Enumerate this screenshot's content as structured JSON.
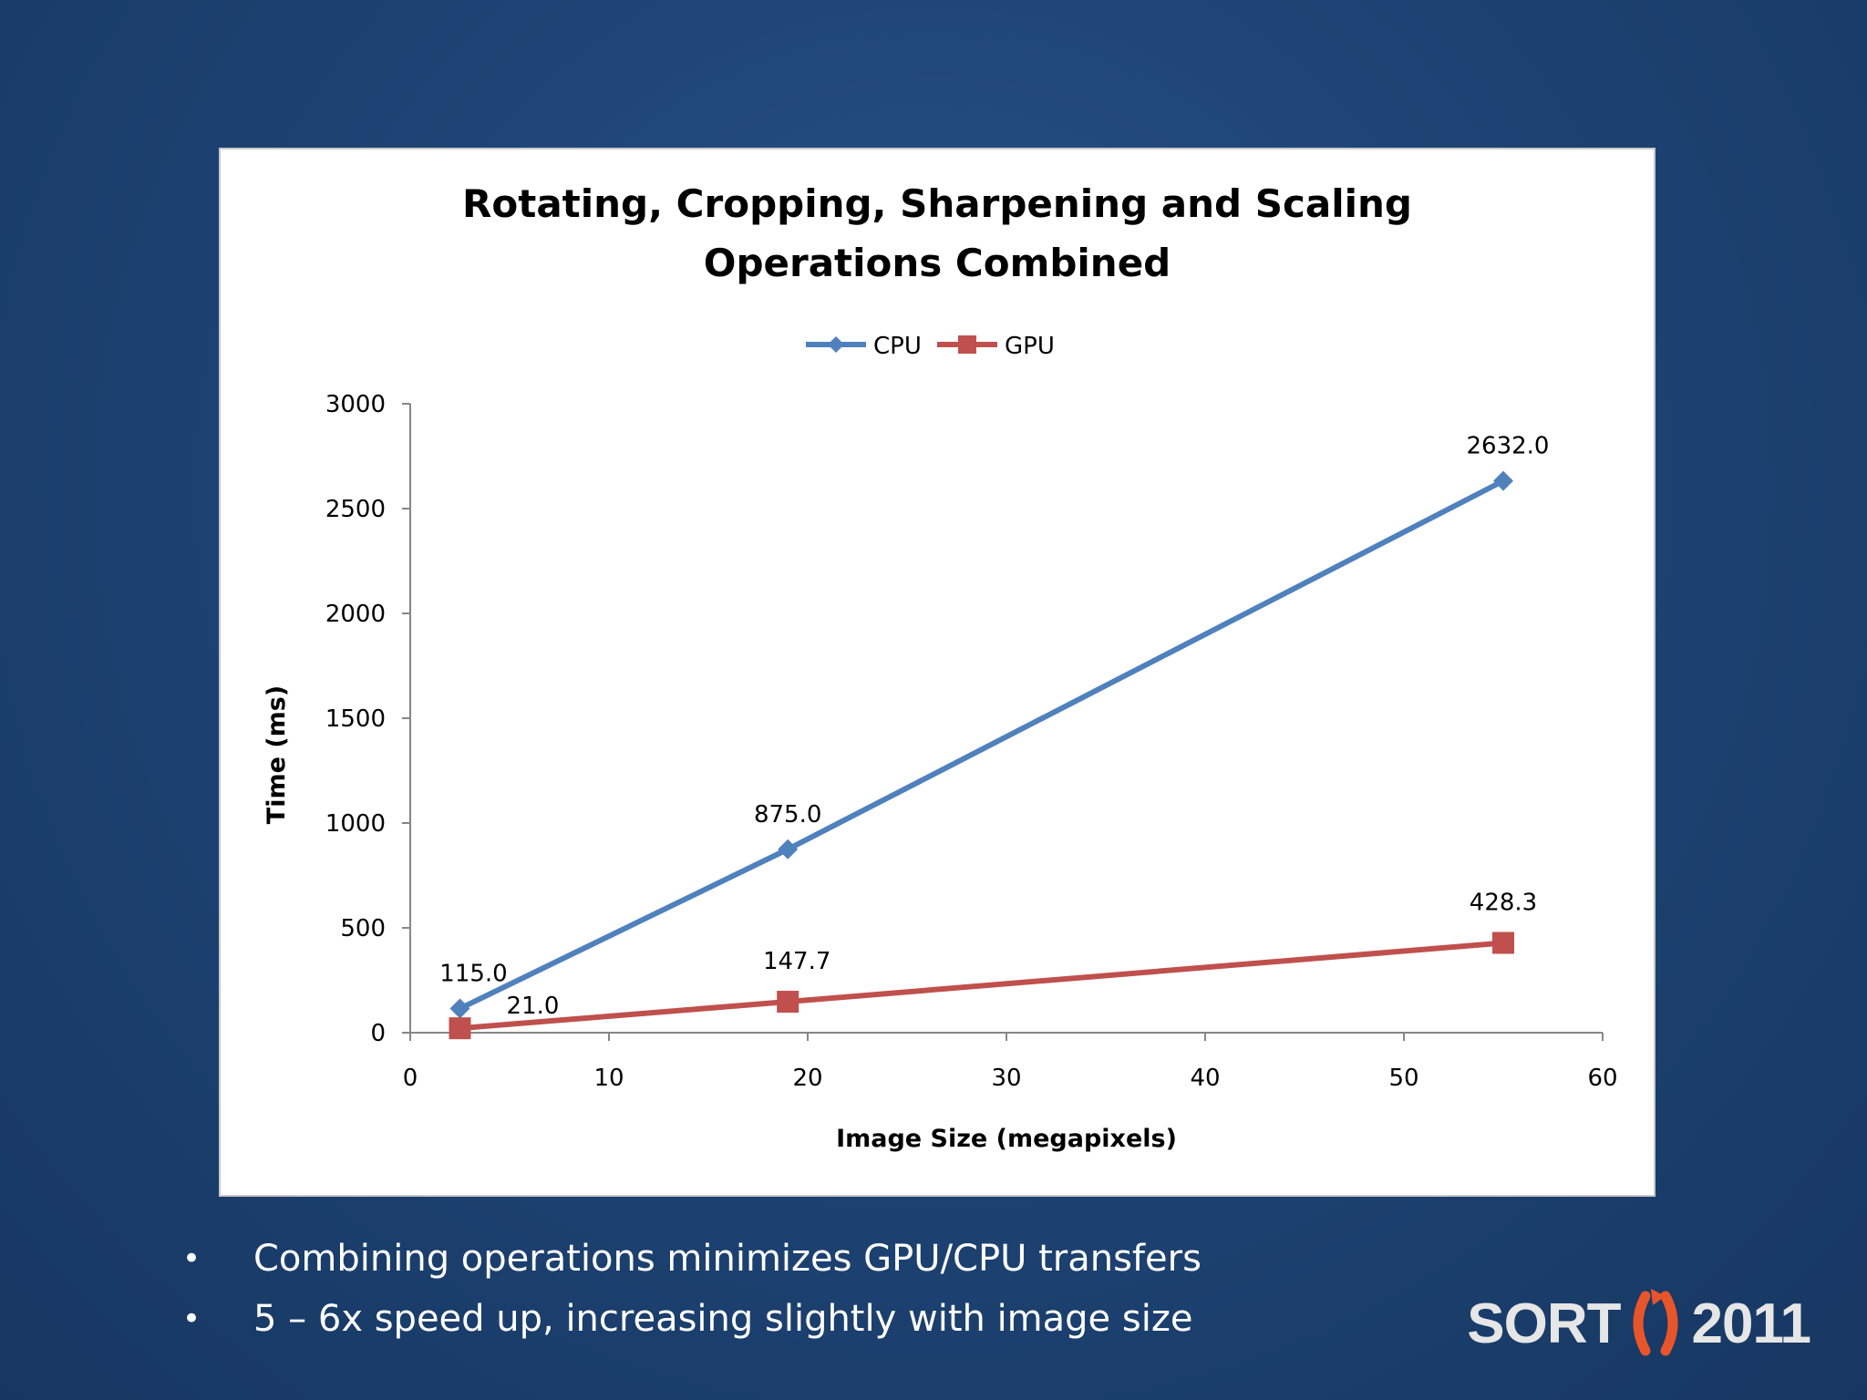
{
  "chart_data": {
    "type": "line",
    "title_lines": [
      "Rotating, Cropping, Sharpening and Scaling",
      "Operations Combined"
    ],
    "xlabel": "Image Size (megapixels)",
    "ylabel": "Time (ms)",
    "xlim": [
      0,
      60
    ],
    "ylim": [
      0,
      3000
    ],
    "xticks": [
      0,
      10,
      20,
      30,
      40,
      50,
      60
    ],
    "yticks": [
      0,
      500,
      1000,
      1500,
      2000,
      2500,
      3000
    ],
    "grid": false,
    "legend_position": "top-center",
    "series": [
      {
        "name": "CPU",
        "color": "#4f81bd",
        "marker": "diamond",
        "x": [
          2.5,
          19,
          55
        ],
        "y": [
          115.0,
          875.0,
          2632.0
        ],
        "labels": [
          "115.0",
          "875.0",
          "2632.0"
        ]
      },
      {
        "name": "GPU",
        "color": "#c0504d",
        "marker": "square",
        "x": [
          2.5,
          19,
          55
        ],
        "y": [
          21.0,
          147.7,
          428.3
        ],
        "labels": [
          "21.0",
          "147.7",
          "428.3"
        ]
      }
    ]
  },
  "bullets": [
    "Combining operations minimizes GPU/CPU transfers",
    "5 – 6x speed up, increasing slightly with image size"
  ],
  "logo": {
    "left": "SORT",
    "right": "2011",
    "accent_color": "#e8552a"
  }
}
